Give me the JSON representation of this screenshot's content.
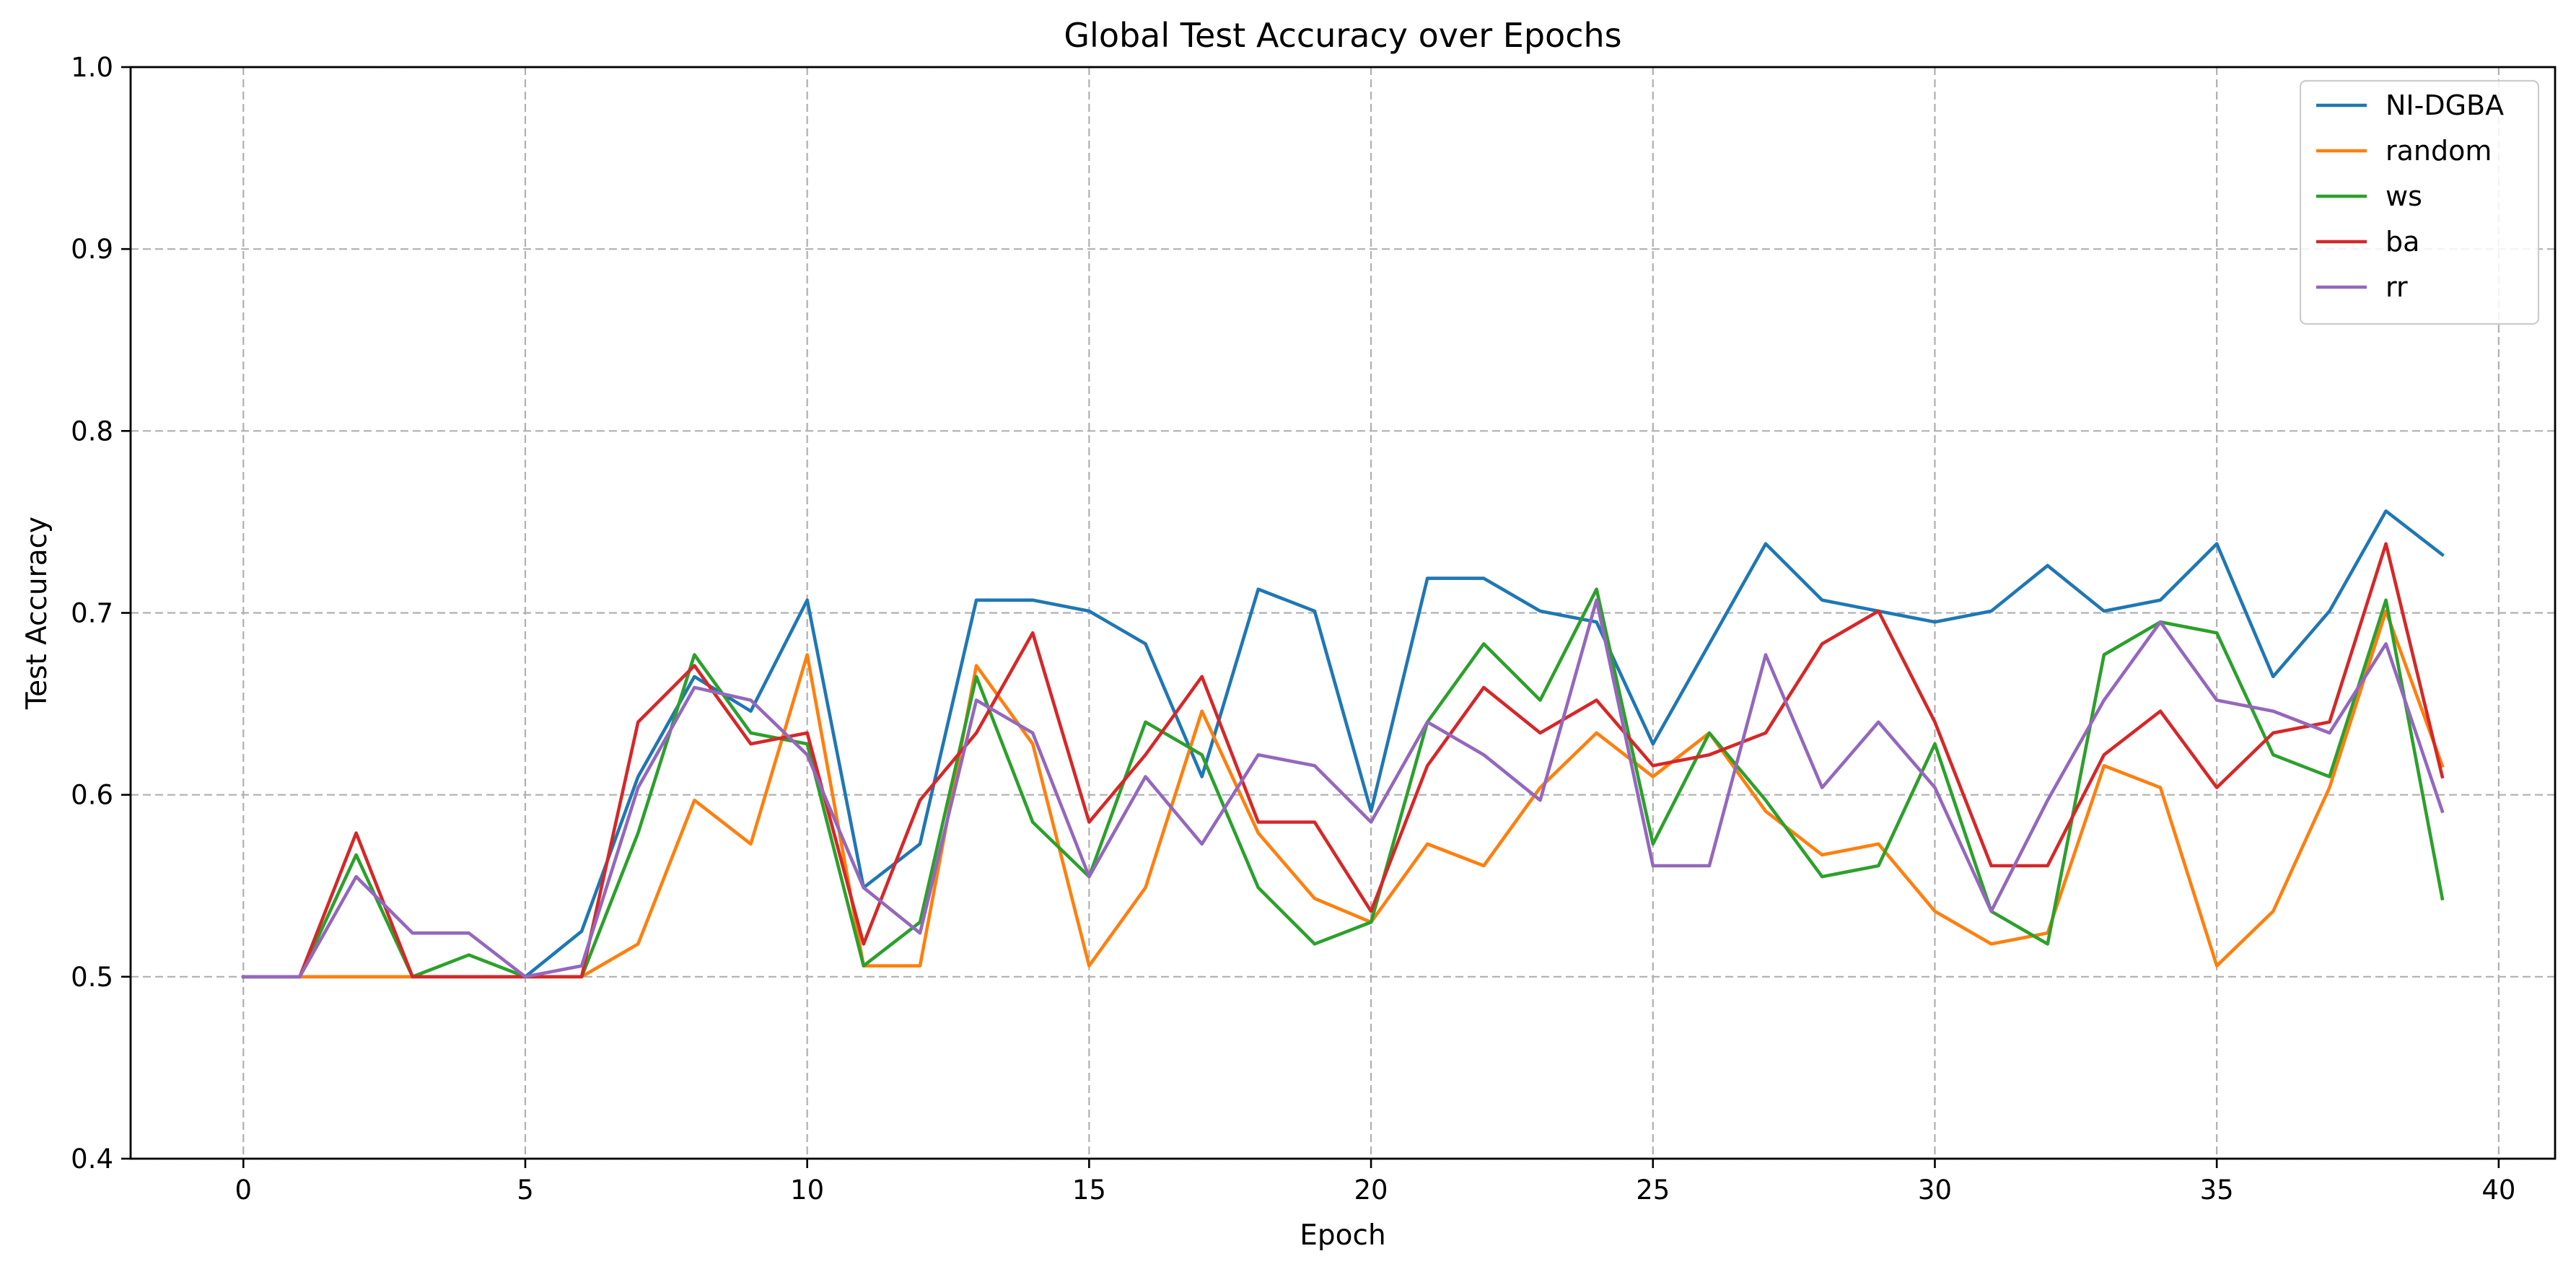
{
  "chart_data": {
    "type": "line",
    "title": "Global Test Accuracy over Epochs",
    "xlabel": "Epoch",
    "ylabel": "Test Accuracy",
    "xlim": [
      -2,
      41
    ],
    "ylim": [
      0.4,
      1.0
    ],
    "xticks": [
      0,
      5,
      10,
      15,
      20,
      25,
      30,
      35,
      40
    ],
    "yticks": [
      0.4,
      0.5,
      0.6,
      0.7,
      0.8,
      0.9,
      1.0
    ],
    "xtick_labels": [
      "0",
      "5",
      "10",
      "15",
      "20",
      "25",
      "30",
      "35",
      "40"
    ],
    "ytick_labels": [
      "0.4",
      "0.5",
      "0.6",
      "0.7",
      "0.8",
      "0.9",
      "1.0"
    ],
    "grid": true,
    "legend_position": "top-right",
    "x": [
      0,
      1,
      2,
      3,
      4,
      5,
      6,
      7,
      8,
      9,
      10,
      11,
      12,
      13,
      14,
      15,
      16,
      17,
      18,
      19,
      20,
      21,
      22,
      23,
      24,
      25,
      26,
      27,
      28,
      29,
      30,
      31,
      32,
      33,
      34,
      35,
      36,
      37,
      38,
      39
    ],
    "series": [
      {
        "name": "NI-DGBA",
        "color": "#1f77b4",
        "values": [
          0.5,
          0.5,
          0.5,
          0.5,
          0.5,
          0.5,
          0.525,
          0.61,
          0.665,
          0.646,
          0.707,
          0.549,
          0.573,
          0.707,
          0.707,
          0.701,
          0.683,
          0.61,
          0.713,
          0.701,
          0.591,
          0.719,
          0.719,
          0.701,
          0.695,
          0.628,
          0.683,
          0.738,
          0.707,
          0.701,
          0.695,
          0.701,
          0.726,
          0.701,
          0.707,
          0.738,
          0.665,
          0.701,
          0.756,
          0.732
        ]
      },
      {
        "name": "random",
        "color": "#ff7f0e",
        "values": [
          0.5,
          0.5,
          0.5,
          0.5,
          0.5,
          0.5,
          0.5,
          0.518,
          0.597,
          0.573,
          0.677,
          0.506,
          0.506,
          0.671,
          0.628,
          0.506,
          0.549,
          0.646,
          0.579,
          0.543,
          0.53,
          0.573,
          0.561,
          0.604,
          0.634,
          0.61,
          0.634,
          0.591,
          0.567,
          0.573,
          0.536,
          0.518,
          0.524,
          0.616,
          0.604,
          0.506,
          0.536,
          0.604,
          0.701,
          0.616
        ]
      },
      {
        "name": "ws",
        "color": "#2ca02c",
        "values": [
          0.5,
          0.5,
          0.567,
          0.5,
          0.512,
          0.5,
          0.5,
          0.579,
          0.677,
          0.634,
          0.628,
          0.506,
          0.53,
          0.665,
          0.585,
          0.555,
          0.64,
          0.622,
          0.549,
          0.518,
          0.53,
          0.64,
          0.683,
          0.652,
          0.713,
          0.573,
          0.634,
          0.597,
          0.555,
          0.561,
          0.628,
          0.536,
          0.518,
          0.677,
          0.695,
          0.689,
          0.622,
          0.61,
          0.707,
          0.543
        ]
      },
      {
        "name": "ba",
        "color": "#d62728",
        "values": [
          0.5,
          0.5,
          0.579,
          0.5,
          0.5,
          0.5,
          0.5,
          0.64,
          0.671,
          0.628,
          0.634,
          0.518,
          0.597,
          0.634,
          0.689,
          0.585,
          0.622,
          0.665,
          0.585,
          0.585,
          0.536,
          0.616,
          0.659,
          0.634,
          0.652,
          0.616,
          0.622,
          0.634,
          0.683,
          0.701,
          0.64,
          0.561,
          0.561,
          0.622,
          0.646,
          0.604,
          0.634,
          0.64,
          0.738,
          0.61
        ]
      },
      {
        "name": "rr",
        "color": "#9467bd",
        "values": [
          0.5,
          0.5,
          0.555,
          0.524,
          0.524,
          0.5,
          0.506,
          0.604,
          0.659,
          0.652,
          0.622,
          0.549,
          0.524,
          0.652,
          0.634,
          0.555,
          0.61,
          0.573,
          0.622,
          0.616,
          0.585,
          0.64,
          0.622,
          0.597,
          0.707,
          0.561,
          0.561,
          0.677,
          0.604,
          0.64,
          0.604,
          0.536,
          0.597,
          0.652,
          0.695,
          0.652,
          0.646,
          0.634,
          0.683,
          0.591
        ]
      }
    ]
  }
}
